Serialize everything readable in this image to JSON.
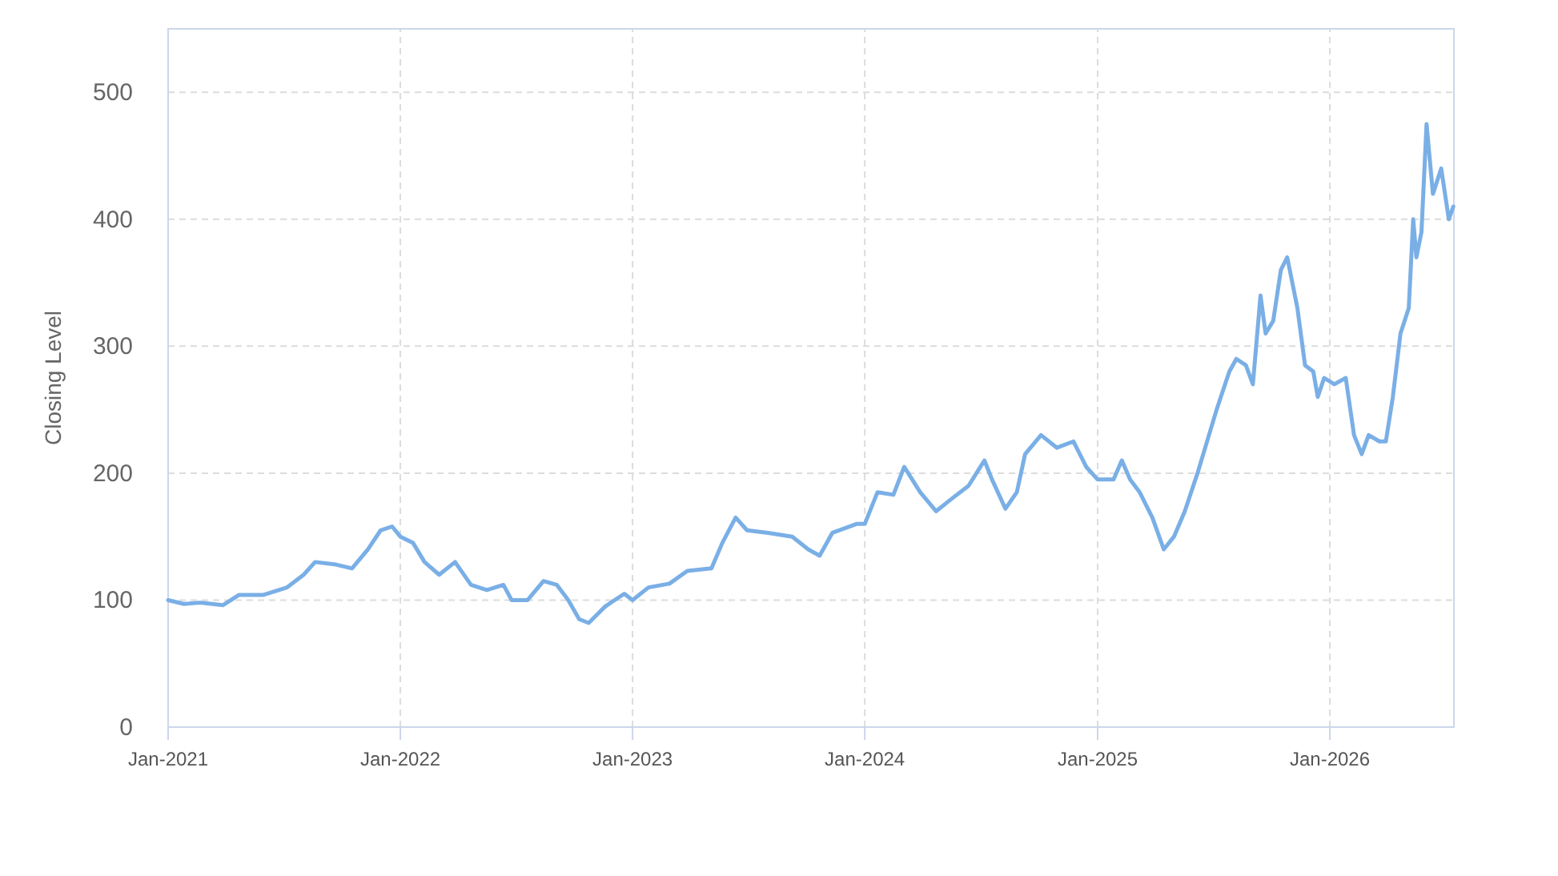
{
  "chart_data": {
    "type": "line",
    "ylabel": "Closing Level",
    "x": [
      "2021-01-01",
      "2021-01-26",
      "2021-02-20",
      "2021-03-28",
      "2021-04-22",
      "2021-05-30",
      "2021-07-07",
      "2021-08-02",
      "2021-08-20",
      "2021-09-22",
      "2021-10-17",
      "2021-11-11",
      "2021-12-01",
      "2021-12-19",
      "2022-01-01",
      "2022-01-21",
      "2022-02-08",
      "2022-03-03",
      "2022-03-28",
      "2022-04-22",
      "2022-05-17",
      "2022-06-12",
      "2022-06-25",
      "2022-07-20",
      "2022-08-14",
      "2022-09-04",
      "2022-09-22",
      "2022-10-09",
      "2022-10-24",
      "2022-11-19",
      "2022-12-19",
      "2023-01-01",
      "2023-01-26",
      "2023-02-28",
      "2023-03-28",
      "2023-05-05",
      "2023-05-22",
      "2023-06-12",
      "2023-06-30",
      "2023-08-02",
      "2023-09-09",
      "2023-10-04",
      "2023-10-22",
      "2023-11-11",
      "2023-12-19",
      "2024-01-01",
      "2024-01-21",
      "2024-02-15",
      "2024-03-03",
      "2024-03-28",
      "2024-04-22",
      "2024-05-17",
      "2024-06-12",
      "2024-07-07",
      "2024-07-19",
      "2024-08-09",
      "2024-08-27",
      "2024-09-09",
      "2024-10-04",
      "2024-10-29",
      "2024-11-24",
      "2024-12-14",
      "2025-01-01",
      "2025-01-26",
      "2025-02-08",
      "2025-02-21",
      "2025-03-08",
      "2025-03-28",
      "2025-04-15",
      "2025-05-01",
      "2025-05-18",
      "2025-06-07",
      "2025-06-25",
      "2025-07-07",
      "2025-07-27",
      "2025-08-07",
      "2025-08-22",
      "2025-09-02",
      "2025-09-14",
      "2025-09-22",
      "2025-10-04",
      "2025-10-16",
      "2025-10-26",
      "2025-11-11",
      "2025-11-23",
      "2025-12-06",
      "2025-12-13",
      "2025-12-23",
      "2026-01-08",
      "2026-01-26",
      "2026-02-08",
      "2026-02-20",
      "2026-03-03",
      "2026-03-20",
      "2026-03-30",
      "2026-04-10",
      "2026-04-22",
      "2026-05-05",
      "2026-05-12",
      "2026-05-17",
      "2026-05-25",
      "2026-06-02",
      "2026-06-12",
      "2026-06-25",
      "2026-07-07",
      "2026-07-14"
    ],
    "series": [
      {
        "color": "#7aafe6",
        "values": [
          100,
          97,
          98,
          96,
          104,
          104,
          110,
          120,
          130,
          128,
          125,
          140,
          155,
          158,
          150,
          145,
          130,
          120,
          130,
          112,
          108,
          112,
          100,
          100,
          115,
          112,
          100,
          85,
          82,
          95,
          105,
          100,
          110,
          113,
          123,
          125,
          145,
          165,
          155,
          153,
          150,
          140,
          135,
          153,
          160,
          160,
          185,
          183,
          205,
          185,
          170,
          180,
          190,
          210,
          195,
          172,
          185,
          215,
          230,
          220,
          225,
          205,
          195,
          195,
          210,
          195,
          185,
          165,
          140,
          150,
          170,
          200,
          230,
          250,
          280,
          290,
          285,
          270,
          340,
          310,
          320,
          360,
          370,
          330,
          285,
          280,
          260,
          275,
          270,
          275,
          230,
          215,
          230,
          225,
          225,
          260,
          310,
          330,
          400,
          370,
          390,
          475,
          420,
          440,
          400,
          410
        ]
      }
    ],
    "xlim": [
      "2021-01-01",
      "2026-07-15"
    ],
    "xticks": [
      {
        "value": "2021-01-01",
        "label": "Jan-2021"
      },
      {
        "value": "2022-01-01",
        "label": "Jan-2022"
      },
      {
        "value": "2023-01-01",
        "label": "Jan-2023"
      },
      {
        "value": "2024-01-01",
        "label": "Jan-2024"
      },
      {
        "value": "2025-01-01",
        "label": "Jan-2025"
      },
      {
        "value": "2026-01-01",
        "label": "Jan-2026"
      }
    ],
    "ylim": [
      0,
      550
    ],
    "yticks": [
      0,
      100,
      200,
      300,
      400,
      500
    ],
    "grid": true,
    "marker": "none",
    "line_style": "solid"
  }
}
